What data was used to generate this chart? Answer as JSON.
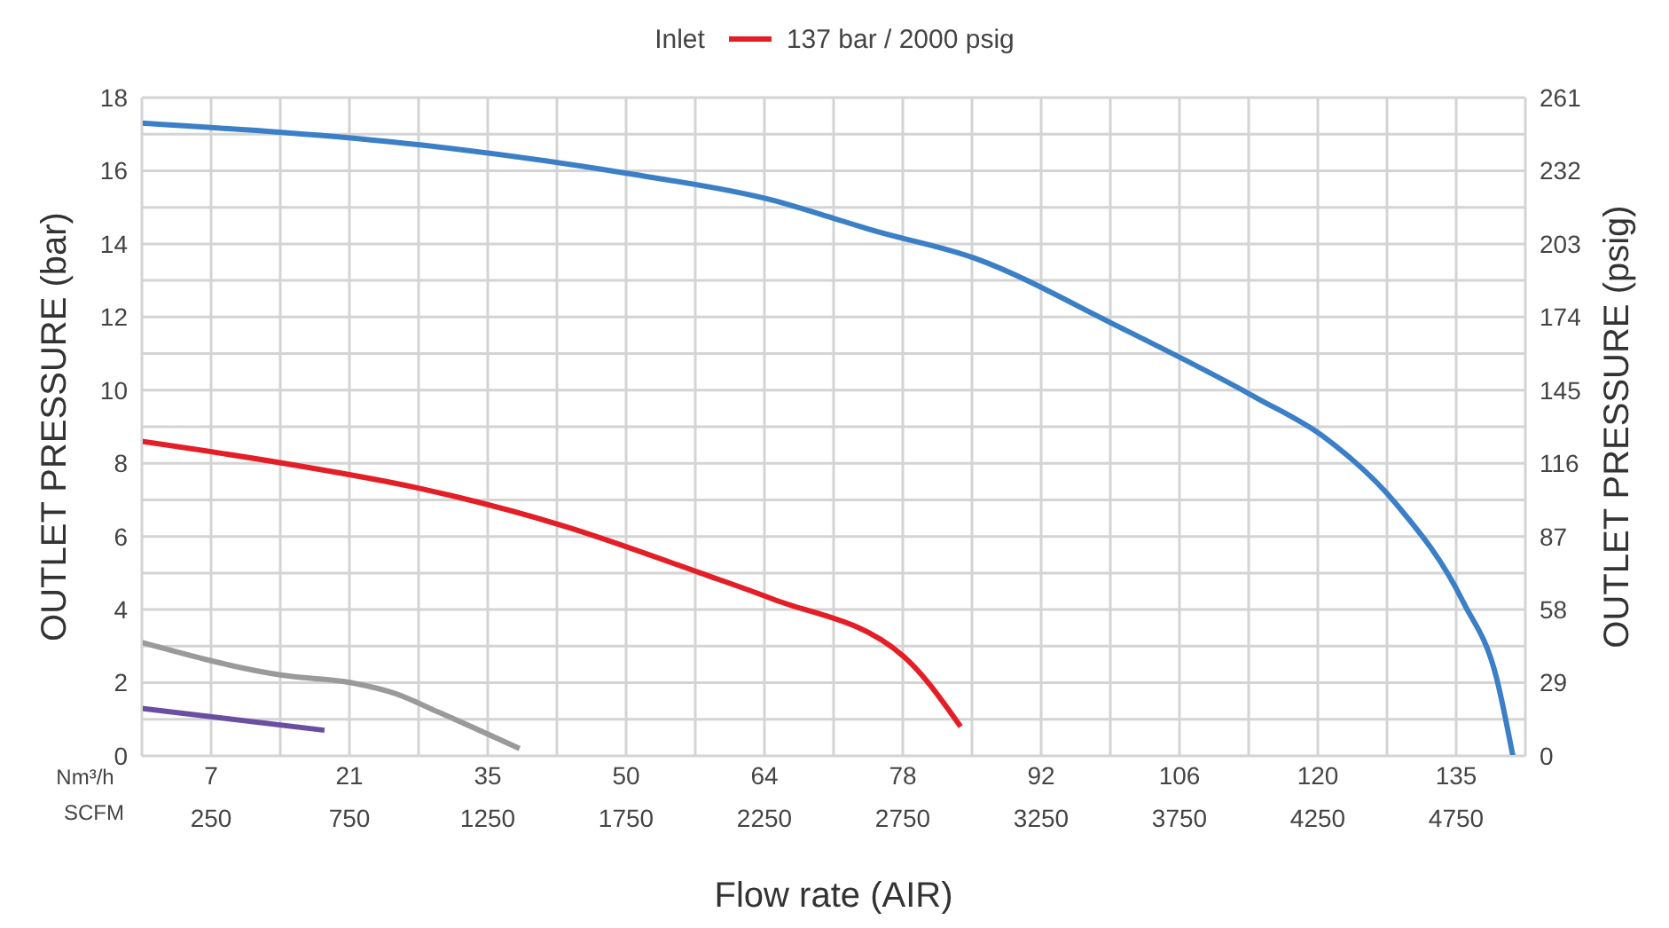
{
  "chart_data": {
    "type": "line",
    "legend_title": "Inlet",
    "xlabel": "Flow rate (AIR)",
    "ylabel": "OUTLET PRESSURE (bar)",
    "y2label": "OUTLET PRESSURE (psig)",
    "x2label": "Nm³/h",
    "annotations": [
      "SCFM"
    ],
    "xlim": [
      0,
      5000
    ],
    "xticks": [
      {
        "value": 0,
        "label": null
      },
      250,
      {
        "value": 500,
        "label": null
      },
      750,
      {
        "value": 1000,
        "label": null
      },
      1250,
      {
        "value": 1500,
        "label": null
      },
      1750,
      {
        "value": 2000,
        "label": null
      },
      2250,
      {
        "value": 2500,
        "label": null
      },
      2750,
      {
        "value": 3000,
        "label": null
      },
      3250,
      {
        "value": 3500,
        "label": null
      },
      3750,
      {
        "value": 4000,
        "label": null
      },
      4250,
      {
        "value": 4500,
        "label": null
      },
      4750,
      {
        "value": 5000,
        "label": null
      }
    ],
    "x2lim": [
      0,
      141.6
    ],
    "x2ticks": [
      {
        "value": 7.08,
        "label": "7"
      },
      {
        "value": 21.24,
        "label": "21"
      },
      {
        "value": 35.4,
        "label": "35"
      },
      {
        "value": 49.56,
        "label": "50"
      },
      {
        "value": 63.72,
        "label": "64"
      },
      {
        "value": 77.88,
        "label": "78"
      },
      {
        "value": 92.04,
        "label": "92"
      },
      {
        "value": 106.2,
        "label": "106"
      },
      {
        "value": 120.36,
        "label": "120"
      },
      {
        "value": 134.52,
        "label": "135"
      }
    ],
    "ylim": [
      0,
      18
    ],
    "yticks": [
      0,
      {
        "value": 1,
        "label": null
      },
      2,
      {
        "value": 3,
        "label": null
      },
      4,
      {
        "value": 5,
        "label": null
      },
      6,
      {
        "value": 7,
        "label": null
      },
      8,
      {
        "value": 9,
        "label": null
      },
      10,
      {
        "value": 11,
        "label": null
      },
      12,
      {
        "value": 13,
        "label": null
      },
      14,
      {
        "value": 15,
        "label": null
      },
      16,
      {
        "value": 17,
        "label": null
      },
      18
    ],
    "y2lim": [
      0,
      261
    ],
    "y2ticks": [
      0,
      29,
      58,
      87,
      116,
      145,
      174,
      203,
      232,
      261
    ],
    "grid": true,
    "legend": "top",
    "marker": "none",
    "line_style": "solid",
    "series": [
      {
        "color": "#3b7fc6",
        "x": [
          0,
          1013,
          1776,
          2276,
          2500,
          2628,
          3013,
          3513,
          4026,
          4276,
          4532,
          4776,
          4897,
          4955
        ],
        "values": [
          17.3,
          16.7,
          15.9,
          15.2,
          14.7,
          14.4,
          13.6,
          11.8,
          9.8,
          8.7,
          6.9,
          4.2,
          2.1,
          0
        ]
      },
      {
        "name": "137 bar / 2000 psig",
        "color": "#e41e26",
        "x": [
          0,
          513,
          1013,
          1519,
          2019,
          2276,
          2756,
          2959
        ],
        "values": [
          8.6,
          8.0,
          7.3,
          6.3,
          5.0,
          4.3,
          2.7,
          0.8
        ]
      },
      {
        "color": "#9a9a9a",
        "x": [
          0,
          513,
          756,
          917,
          1071,
          1365
        ],
        "values": [
          3.1,
          2.2,
          2.0,
          1.7,
          1.2,
          0.2
        ]
      },
      {
        "color": "#6a4fa0",
        "x": [
          0,
          660
        ],
        "values": [
          1.3,
          0.7
        ]
      }
    ]
  }
}
